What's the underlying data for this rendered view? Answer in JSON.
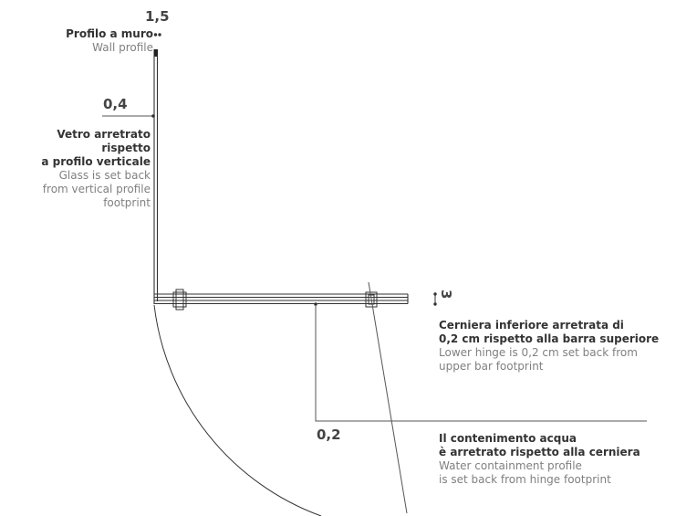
{
  "dimensions": {
    "wall_profile": "1,5",
    "glass_setback": "0,4",
    "hinge_setback": "0,2",
    "bar_depth": "3"
  },
  "labels": {
    "wall_profile": {
      "it": "Profilo a muro",
      "en": "Wall profile"
    },
    "glass": {
      "it_1": "Vetro arretrato",
      "it_2": "rispetto",
      "it_3": "a profilo verticale",
      "en_1": "Glass is set back",
      "en_2": "from vertical profile",
      "en_3": "footprint"
    },
    "hinge": {
      "it_1": "Cerniera inferiore arretrata di",
      "it_2": "0,2 cm rispetto alla barra superiore",
      "en_1": "Lower hinge is 0,2 cm set back from",
      "en_2": "upper bar footprint"
    },
    "water": {
      "it_1": "Il contenimento acqua",
      "it_2": "è arretrato rispetto alla cerniera",
      "en_1": "Water containment profile",
      "en_2": "is set back from hinge footprint"
    }
  },
  "colors": {
    "bold_text": "#333333",
    "light_text": "#808080",
    "line": "#555555",
    "profile": "#222222"
  }
}
